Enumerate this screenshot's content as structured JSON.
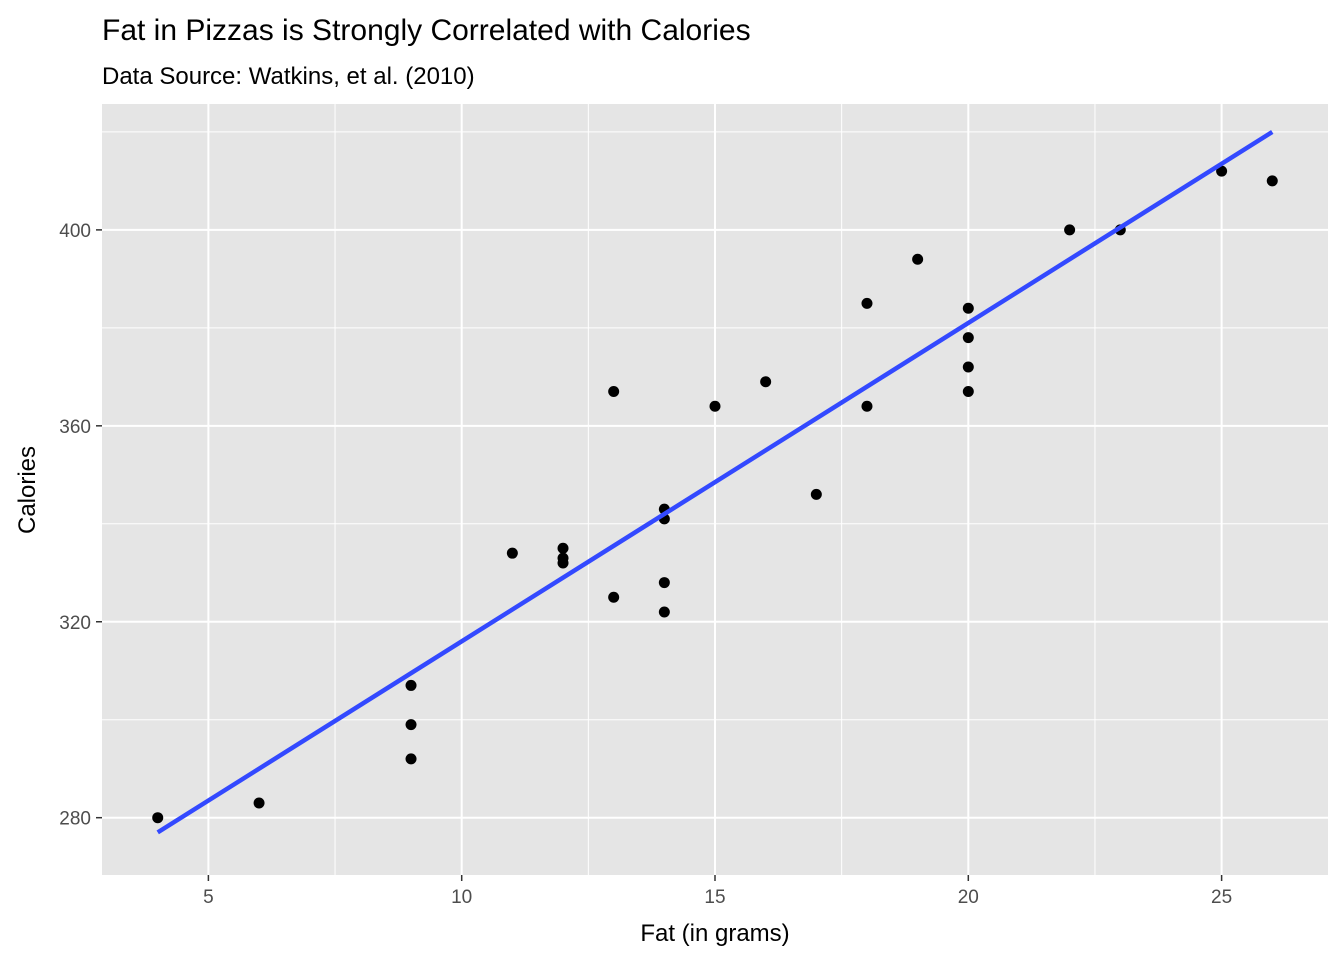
{
  "chart_data": {
    "type": "scatter",
    "title": "Fat in Pizzas is Strongly Correlated with Calories",
    "subtitle": "Data Source: Watkins, et al. (2010)",
    "xlabel": "Fat (in grams)",
    "ylabel": "Calories",
    "xlim": [
      2.9,
      27.1
    ],
    "ylim": [
      268.3,
      425.7
    ],
    "x_ticks": [
      5,
      10,
      15,
      20,
      25
    ],
    "x_tick_labels": [
      "5",
      "10",
      "15",
      "20",
      "25"
    ],
    "x_minor_ticks": [
      7.5,
      12.5,
      17.5,
      22.5
    ],
    "y_ticks": [
      280,
      320,
      360,
      400
    ],
    "y_tick_labels": [
      "280",
      "320",
      "360",
      "400"
    ],
    "y_minor_ticks": [
      300,
      340,
      380,
      420
    ],
    "grid": true,
    "legend": "none",
    "points": [
      {
        "x": 4,
        "y": 280
      },
      {
        "x": 6,
        "y": 283
      },
      {
        "x": 9,
        "y": 292
      },
      {
        "x": 9,
        "y": 299
      },
      {
        "x": 9,
        "y": 307
      },
      {
        "x": 11,
        "y": 334
      },
      {
        "x": 12,
        "y": 332
      },
      {
        "x": 12,
        "y": 333
      },
      {
        "x": 12,
        "y": 335
      },
      {
        "x": 13,
        "y": 325
      },
      {
        "x": 13,
        "y": 367
      },
      {
        "x": 14,
        "y": 322
      },
      {
        "x": 14,
        "y": 328
      },
      {
        "x": 14,
        "y": 341
      },
      {
        "x": 14,
        "y": 343
      },
      {
        "x": 15,
        "y": 364
      },
      {
        "x": 16,
        "y": 369
      },
      {
        "x": 17,
        "y": 346
      },
      {
        "x": 18,
        "y": 364
      },
      {
        "x": 18,
        "y": 385
      },
      {
        "x": 19,
        "y": 394
      },
      {
        "x": 20,
        "y": 367
      },
      {
        "x": 20,
        "y": 372
      },
      {
        "x": 20,
        "y": 378
      },
      {
        "x": 20,
        "y": 384
      },
      {
        "x": 22,
        "y": 400
      },
      {
        "x": 23,
        "y": 400
      },
      {
        "x": 25,
        "y": 412
      },
      {
        "x": 26,
        "y": 410
      }
    ],
    "fit_line": {
      "method": "lm",
      "x": [
        4,
        26
      ],
      "y": [
        277,
        420
      ]
    },
    "colors": {
      "panel_background": "#e5e5e5",
      "grid": "#ffffff",
      "points": "#000000",
      "fit_line": "#3349ff",
      "tick_text": "#4d4d4d",
      "tick_marks": "#333333"
    }
  }
}
